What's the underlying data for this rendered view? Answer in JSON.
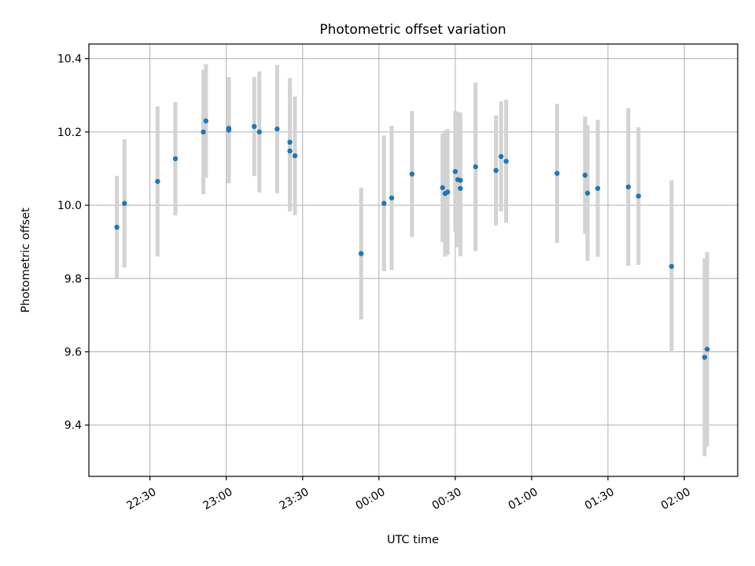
{
  "chart_data": {
    "type": "scatter",
    "title": "Photometric offset variation",
    "xlabel": "UTC time",
    "ylabel": "Photometric offset",
    "x_unit": "UTC time (HH:MM), data after midnight shown as hours > 24",
    "xlim": [
      "22:06",
      "02:21"
    ],
    "ylim": [
      9.26,
      10.44
    ],
    "x_ticks": [
      "22:30",
      "23:00",
      "23:30",
      "00:00",
      "00:30",
      "01:00",
      "01:30",
      "02:00"
    ],
    "y_ticks": [
      "9.4",
      "9.6",
      "9.8",
      "10.0",
      "10.2",
      "10.4"
    ],
    "grid": true,
    "marker_color": "#1f77b4",
    "errorbar_color": "#d3d3d3",
    "series": [
      {
        "points": [
          {
            "x": "22:17",
            "y": 9.94,
            "err": 0.14
          },
          {
            "x": "22:20",
            "y": 10.005,
            "err": 0.175
          },
          {
            "x": "22:33",
            "y": 10.065,
            "err": 0.205
          },
          {
            "x": "22:40",
            "y": 10.127,
            "err": 0.155
          },
          {
            "x": "22:51",
            "y": 10.2,
            "err": 0.17
          },
          {
            "x": "22:52",
            "y": 10.23,
            "err": 0.155
          },
          {
            "x": "23:01",
            "y": 10.205,
            "err": 0.145
          },
          {
            "x": "23:01",
            "y": 10.21,
            "err": 0.14
          },
          {
            "x": "23:11",
            "y": 10.215,
            "err": 0.135
          },
          {
            "x": "23:13",
            "y": 10.2,
            "err": 0.165
          },
          {
            "x": "23:20",
            "y": 10.208,
            "err": 0.175
          },
          {
            "x": "23:25",
            "y": 10.172,
            "err": 0.175
          },
          {
            "x": "23:25",
            "y": 10.148,
            "err": 0.165
          },
          {
            "x": "23:27",
            "y": 10.135,
            "err": 0.162
          },
          {
            "x": "23:53",
            "y": 9.868,
            "err": 0.18
          },
          {
            "x": "23:62",
            "y": 10.005,
            "err": 0.185
          },
          {
            "x": "24:05",
            "y": 10.02,
            "err": 0.197
          },
          {
            "x": "24:13",
            "y": 10.085,
            "err": 0.172
          },
          {
            "x": "24:25",
            "y": 10.048,
            "err": 0.148
          },
          {
            "x": "24:26",
            "y": 10.032,
            "err": 0.172
          },
          {
            "x": "24:27",
            "y": 10.036,
            "err": 0.172
          },
          {
            "x": "24:30",
            "y": 10.092,
            "err": 0.165
          },
          {
            "x": "24:31",
            "y": 10.07,
            "err": 0.185
          },
          {
            "x": "24:32",
            "y": 10.068,
            "err": 0.185
          },
          {
            "x": "24:32",
            "y": 10.046,
            "err": 0.185
          },
          {
            "x": "24:38",
            "y": 10.105,
            "err": 0.23
          },
          {
            "x": "24:46",
            "y": 10.095,
            "err": 0.15
          },
          {
            "x": "24:48",
            "y": 10.133,
            "err": 0.15
          },
          {
            "x": "24:50",
            "y": 10.12,
            "err": 0.168
          },
          {
            "x": "25:10",
            "y": 10.087,
            "err": 0.19
          },
          {
            "x": "25:21",
            "y": 10.082,
            "err": 0.16
          },
          {
            "x": "25:22",
            "y": 10.033,
            "err": 0.185
          },
          {
            "x": "25:26",
            "y": 10.046,
            "err": 0.187
          },
          {
            "x": "25:38",
            "y": 10.05,
            "err": 0.215
          },
          {
            "x": "25:42",
            "y": 10.025,
            "err": 0.188
          },
          {
            "x": "25:55",
            "y": 9.833,
            "err": 0.235
          },
          {
            "x": "26:08",
            "y": 9.585,
            "err": 0.27
          },
          {
            "x": "26:09",
            "y": 9.607,
            "err": 0.265
          }
        ]
      }
    ]
  }
}
